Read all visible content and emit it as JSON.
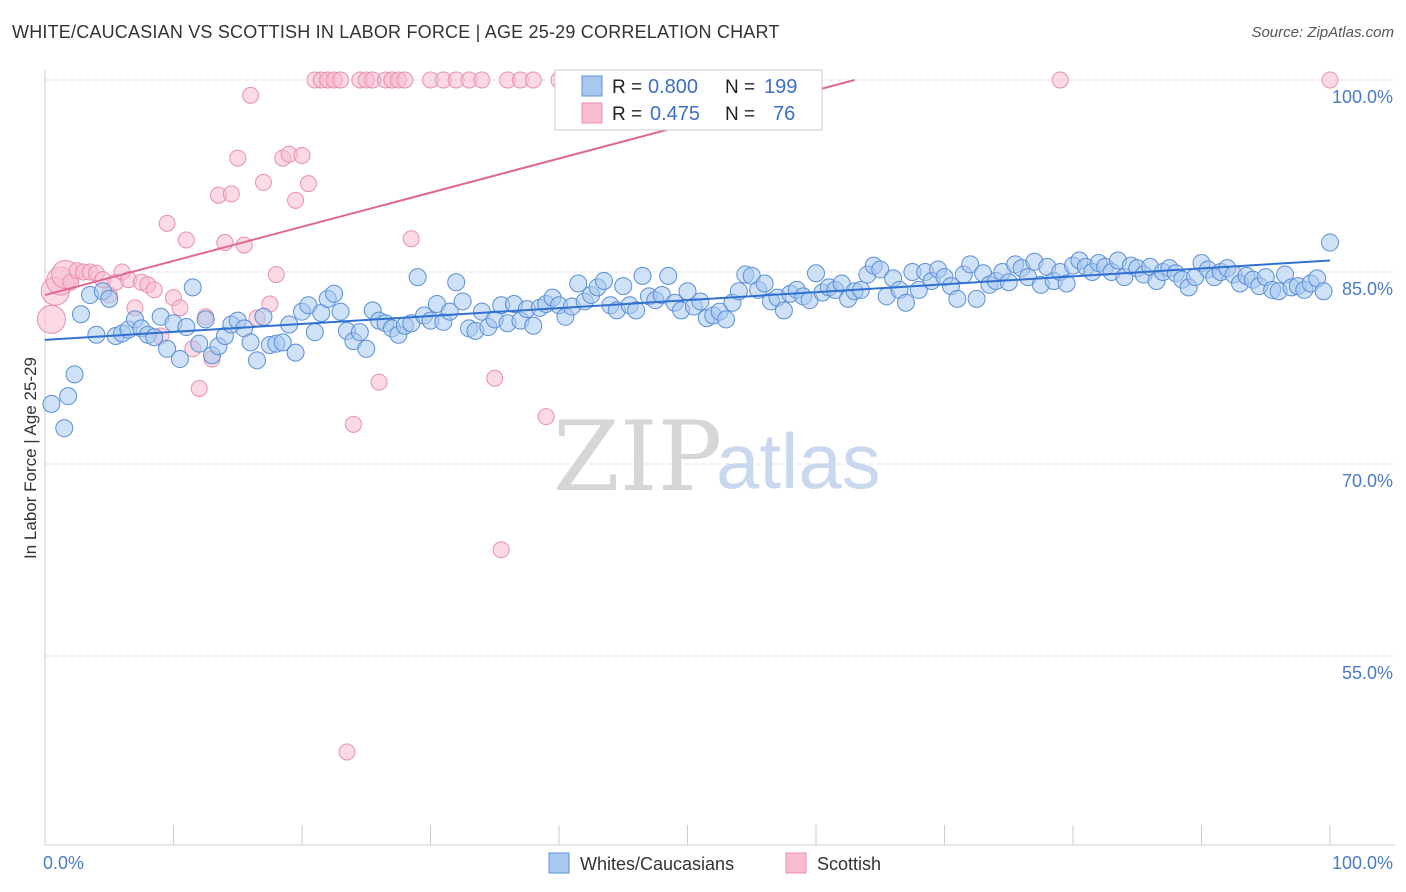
{
  "title": "WHITE/CAUCASIAN VS SCOTTISH IN LABOR FORCE | AGE 25-29 CORRELATION CHART",
  "source": "Source: ZipAtlas.com",
  "watermark": {
    "zip": "ZIP",
    "atlas": "atlas"
  },
  "colors": {
    "blue_fill": "#a8c8f0",
    "blue_stroke": "#5b8fd6",
    "blue_line": "#3070d0",
    "pink_fill": "#f7bcd0",
    "pink_stroke": "#e890ac",
    "pink_line": "#e06890",
    "grid": "#dddddd",
    "tick_text": "#4a7bc8"
  },
  "stats_box": {
    "rows": [
      {
        "r_label": "R =",
        "r_value": "0.800",
        "n_label": "N =",
        "n_value": "199"
      },
      {
        "r_label": "R =",
        "r_value": "0.475",
        "n_label": "N =",
        "n_value": "76"
      }
    ]
  },
  "chart_data": {
    "type": "scatter",
    "title": "WHITE/CAUCASIAN VS SCOTTISH IN LABOR FORCE | AGE 25-29 CORRELATION CHART",
    "xlabel": "",
    "ylabel": "In Labor Force | Age 25-29",
    "xlim": [
      0,
      100
    ],
    "ylim": [
      40,
      101
    ],
    "x_tick_labels": [
      "0.0%",
      "100.0%"
    ],
    "y_ticks": [
      55,
      70,
      85,
      100
    ],
    "y_tick_labels": [
      "55.0%",
      "70.0%",
      "85.0%",
      "100.0%"
    ],
    "grid": true,
    "legend_position": "bottom-center",
    "series": [
      {
        "name": "Whites/Caucasians",
        "r": 0.8,
        "n": 199,
        "trend": {
          "x": [
            0,
            100
          ],
          "y": [
            79.7,
            85.9
          ]
        },
        "points": [
          [
            0.5,
            74.7
          ],
          [
            1.5,
            72.8
          ],
          [
            1.8,
            75.3
          ],
          [
            2.3,
            77.0
          ],
          [
            2.8,
            81.7
          ],
          [
            3.5,
            83.2
          ],
          [
            4,
            80.1
          ],
          [
            4.5,
            83.5
          ],
          [
            5,
            82.9
          ],
          [
            5.5,
            80.0
          ],
          [
            6,
            80.2
          ],
          [
            6.5,
            80.5
          ],
          [
            7,
            81.3
          ],
          [
            7.5,
            80.6
          ],
          [
            8,
            80.1
          ],
          [
            8.5,
            79.9
          ],
          [
            9,
            81.5
          ],
          [
            9.5,
            79.0
          ],
          [
            10,
            81.0
          ],
          [
            10.5,
            78.2
          ],
          [
            11,
            80.7
          ],
          [
            11.5,
            83.8
          ],
          [
            12,
            79.4
          ],
          [
            12.5,
            81.3
          ],
          [
            13,
            78.5
          ],
          [
            13.5,
            79.2
          ],
          [
            14,
            80.0
          ],
          [
            14.5,
            80.9
          ],
          [
            15,
            81.2
          ],
          [
            15.5,
            80.6
          ],
          [
            16,
            79.5
          ],
          [
            16.5,
            78.1
          ],
          [
            17,
            81.5
          ],
          [
            17.5,
            79.3
          ],
          [
            18,
            79.4
          ],
          [
            18.5,
            79.5
          ],
          [
            19,
            80.9
          ],
          [
            19.5,
            78.7
          ],
          [
            20,
            81.9
          ],
          [
            20.5,
            82.4
          ],
          [
            21,
            80.3
          ],
          [
            21.5,
            81.8
          ],
          [
            22,
            82.9
          ],
          [
            22.5,
            83.3
          ],
          [
            23,
            81.9
          ],
          [
            23.5,
            80.4
          ],
          [
            24,
            79.6
          ],
          [
            24.5,
            80.3
          ],
          [
            25,
            79.0
          ],
          [
            25.5,
            82.0
          ],
          [
            26,
            81.2
          ],
          [
            26.5,
            81.0
          ],
          [
            27,
            80.6
          ],
          [
            27.5,
            80.1
          ],
          [
            28,
            80.8
          ],
          [
            28.5,
            81.0
          ],
          [
            29,
            84.6
          ],
          [
            29.5,
            81.6
          ],
          [
            30,
            81.2
          ],
          [
            30.5,
            82.5
          ],
          [
            31,
            81.1
          ],
          [
            31.5,
            81.9
          ],
          [
            32,
            84.2
          ],
          [
            32.5,
            82.7
          ],
          [
            33,
            80.6
          ],
          [
            33.5,
            80.4
          ],
          [
            34,
            81.9
          ],
          [
            34.5,
            80.7
          ],
          [
            35,
            81.3
          ],
          [
            35.5,
            82.4
          ],
          [
            36,
            81.0
          ],
          [
            36.5,
            82.5
          ],
          [
            37,
            81.2
          ],
          [
            37.5,
            82.1
          ],
          [
            38,
            80.8
          ],
          [
            38.5,
            82.2
          ],
          [
            39,
            82.5
          ],
          [
            39.5,
            83.0
          ],
          [
            40,
            82.4
          ],
          [
            40.5,
            81.5
          ],
          [
            41,
            82.3
          ],
          [
            41.5,
            84.1
          ],
          [
            42,
            82.7
          ],
          [
            42.5,
            83.2
          ],
          [
            43,
            83.8
          ],
          [
            43.5,
            84.3
          ],
          [
            44,
            82.4
          ],
          [
            44.5,
            82.0
          ],
          [
            45,
            83.9
          ],
          [
            45.5,
            82.4
          ],
          [
            46,
            82.0
          ],
          [
            46.5,
            84.7
          ],
          [
            47,
            83.1
          ],
          [
            47.5,
            82.8
          ],
          [
            48,
            83.2
          ],
          [
            48.5,
            84.7
          ],
          [
            49,
            82.6
          ],
          [
            49.5,
            82.0
          ],
          [
            50,
            83.5
          ],
          [
            50.5,
            82.3
          ],
          [
            51,
            82.7
          ],
          [
            51.5,
            81.4
          ],
          [
            52,
            81.6
          ],
          [
            52.5,
            81.9
          ],
          [
            53,
            81.3
          ],
          [
            53.5,
            82.6
          ],
          [
            54,
            83.5
          ],
          [
            54.5,
            84.8
          ],
          [
            55,
            84.7
          ],
          [
            55.5,
            83.6
          ],
          [
            56,
            84.1
          ],
          [
            56.5,
            82.7
          ],
          [
            57,
            83.0
          ],
          [
            57.5,
            82.0
          ],
          [
            58,
            83.3
          ],
          [
            58.5,
            83.6
          ],
          [
            59,
            83.1
          ],
          [
            59.5,
            82.8
          ],
          [
            60,
            84.9
          ],
          [
            60.5,
            83.4
          ],
          [
            61,
            83.8
          ],
          [
            61.5,
            83.6
          ],
          [
            62,
            84.1
          ],
          [
            62.5,
            82.9
          ],
          [
            63,
            83.5
          ],
          [
            63.5,
            83.6
          ],
          [
            64,
            84.8
          ],
          [
            64.5,
            85.5
          ],
          [
            65,
            85.2
          ],
          [
            65.5,
            83.1
          ],
          [
            66,
            84.5
          ],
          [
            66.5,
            83.6
          ],
          [
            67,
            82.6
          ],
          [
            67.5,
            85.0
          ],
          [
            68,
            83.6
          ],
          [
            68.5,
            85.0
          ],
          [
            69,
            84.3
          ],
          [
            69.5,
            85.2
          ],
          [
            70,
            84.6
          ],
          [
            70.5,
            83.9
          ],
          [
            71,
            82.9
          ],
          [
            71.5,
            84.8
          ],
          [
            72,
            85.6
          ],
          [
            72.5,
            82.9
          ],
          [
            73,
            84.9
          ],
          [
            73.5,
            84.0
          ],
          [
            74,
            84.3
          ],
          [
            74.5,
            85.0
          ],
          [
            75,
            84.2
          ],
          [
            75.5,
            85.6
          ],
          [
            76,
            85.3
          ],
          [
            76.5,
            84.6
          ],
          [
            77,
            85.8
          ],
          [
            77.5,
            84.0
          ],
          [
            78,
            85.4
          ],
          [
            78.5,
            84.3
          ],
          [
            79,
            85.0
          ],
          [
            79.5,
            84.1
          ],
          [
            80,
            85.5
          ],
          [
            80.5,
            85.9
          ],
          [
            81,
            85.4
          ],
          [
            81.5,
            85.0
          ],
          [
            82,
            85.7
          ],
          [
            82.5,
            85.4
          ],
          [
            83,
            85.0
          ],
          [
            83.5,
            85.9
          ],
          [
            84,
            84.6
          ],
          [
            84.5,
            85.5
          ],
          [
            85,
            85.3
          ],
          [
            85.5,
            84.8
          ],
          [
            86,
            85.4
          ],
          [
            86.5,
            84.3
          ],
          [
            87,
            85.0
          ],
          [
            87.5,
            85.3
          ],
          [
            88,
            84.9
          ],
          [
            88.5,
            84.4
          ],
          [
            89,
            83.8
          ],
          [
            89.5,
            84.6
          ],
          [
            90,
            85.7
          ],
          [
            90.5,
            85.2
          ],
          [
            91,
            84.6
          ],
          [
            91.5,
            85.0
          ],
          [
            92,
            85.3
          ],
          [
            92.5,
            84.8
          ],
          [
            93,
            84.1
          ],
          [
            93.5,
            84.7
          ],
          [
            94,
            84.4
          ],
          [
            94.5,
            83.9
          ],
          [
            95,
            84.6
          ],
          [
            95.5,
            83.6
          ],
          [
            96,
            83.5
          ],
          [
            96.5,
            84.8
          ],
          [
            97,
            83.8
          ],
          [
            97.5,
            83.9
          ],
          [
            98,
            83.6
          ],
          [
            98.5,
            84.1
          ],
          [
            99,
            84.5
          ],
          [
            99.5,
            83.5
          ],
          [
            100,
            87.3
          ]
        ]
      },
      {
        "name": "Scottish",
        "r": 0.475,
        "n": 76,
        "trend": {
          "x": [
            0,
            63
          ],
          "y": [
            83.2,
            100
          ]
        },
        "points": [
          [
            0.5,
            81.3
          ],
          [
            0.8,
            83.5
          ],
          [
            1.2,
            84.3
          ],
          [
            1.6,
            84.8
          ],
          [
            2,
            84.2
          ],
          [
            2.5,
            85.1
          ],
          [
            3,
            85.0
          ],
          [
            3.5,
            85.0
          ],
          [
            4,
            84.9
          ],
          [
            4.5,
            84.4
          ],
          [
            5,
            83.2
          ],
          [
            5.5,
            84.2
          ],
          [
            6,
            85.0
          ],
          [
            6.5,
            84.4
          ],
          [
            7,
            82.2
          ],
          [
            7.5,
            84.2
          ],
          [
            8,
            84.0
          ],
          [
            8.5,
            83.6
          ],
          [
            9,
            80.0
          ],
          [
            9.5,
            88.8
          ],
          [
            10,
            83.0
          ],
          [
            10.5,
            82.2
          ],
          [
            11,
            87.5
          ],
          [
            11.5,
            79.0
          ],
          [
            12,
            75.9
          ],
          [
            12.5,
            81.5
          ],
          [
            13,
            78.2
          ],
          [
            13.5,
            91.0
          ],
          [
            14,
            87.3
          ],
          [
            14.5,
            91.1
          ],
          [
            15,
            93.9
          ],
          [
            15.5,
            87.1
          ],
          [
            16,
            98.8
          ],
          [
            16.5,
            81.4
          ],
          [
            17,
            92.0
          ],
          [
            17.5,
            82.5
          ],
          [
            18,
            84.8
          ],
          [
            18.5,
            93.9
          ],
          [
            19,
            94.2
          ],
          [
            19.5,
            90.6
          ],
          [
            20,
            94.1
          ],
          [
            20.5,
            91.9
          ],
          [
            21,
            100
          ],
          [
            21.5,
            100
          ],
          [
            22,
            100
          ],
          [
            22.5,
            100
          ],
          [
            23,
            100
          ],
          [
            23.5,
            47.5
          ],
          [
            24,
            73.1
          ],
          [
            24.5,
            100
          ],
          [
            25,
            100
          ],
          [
            25.5,
            100
          ],
          [
            26,
            76.4
          ],
          [
            26.5,
            100
          ],
          [
            27,
            100
          ],
          [
            27.5,
            100
          ],
          [
            28,
            100
          ],
          [
            28.5,
            87.6
          ],
          [
            30,
            100
          ],
          [
            31,
            100
          ],
          [
            32,
            100
          ],
          [
            33,
            100
          ],
          [
            34,
            100
          ],
          [
            35,
            76.7
          ],
          [
            35.5,
            63.3
          ],
          [
            36,
            100
          ],
          [
            37,
            100
          ],
          [
            38,
            100
          ],
          [
            39,
            73.7
          ],
          [
            40,
            100
          ],
          [
            41,
            100
          ],
          [
            42,
            100
          ],
          [
            43,
            100
          ],
          [
            44,
            100
          ],
          [
            79,
            100
          ],
          [
            100,
            100
          ]
        ]
      }
    ]
  },
  "legend": {
    "items": [
      {
        "label": "Whites/Caucasians"
      },
      {
        "label": "Scottish"
      }
    ]
  }
}
